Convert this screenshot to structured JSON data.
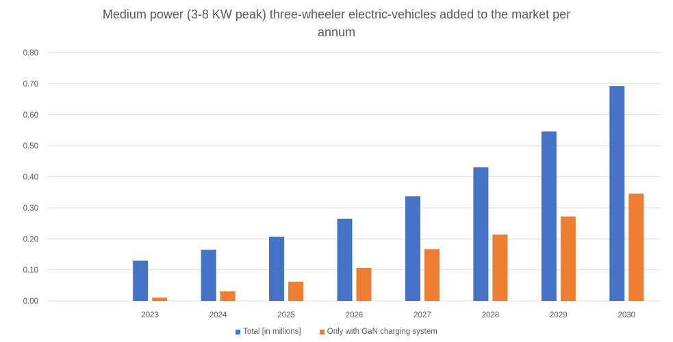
{
  "chart_data": {
    "type": "bar",
    "title_lines": [
      "Medium power (3-8 KW peak) three-wheeler electric-vehicles added to the market per",
      "annum"
    ],
    "title": "Medium power (3-8 KW peak) three-wheeler electric-vehicles added to the market per annum",
    "xlabel": "",
    "ylabel": "",
    "categories": [
      "",
      "2023",
      "2024",
      "2025",
      "2026",
      "2027",
      "2028",
      "2029",
      "2030"
    ],
    "series": [
      {
        "name": "Total [in millions]",
        "color": "#4472C4",
        "values": [
          null,
          0.13,
          0.165,
          0.207,
          0.265,
          0.337,
          0.431,
          0.546,
          0.692
        ]
      },
      {
        "name": "Only with GaN charging system",
        "color": "#ED7D31",
        "values": [
          null,
          0.011,
          0.031,
          0.062,
          0.106,
          0.167,
          0.214,
          0.272,
          0.346
        ]
      }
    ],
    "ylim": [
      0,
      0.8
    ],
    "yticks": [
      "0.00",
      "0.10",
      "0.20",
      "0.30",
      "0.40",
      "0.50",
      "0.60",
      "0.70",
      "0.80"
    ],
    "grid": true,
    "legend_position": "bottom"
  }
}
